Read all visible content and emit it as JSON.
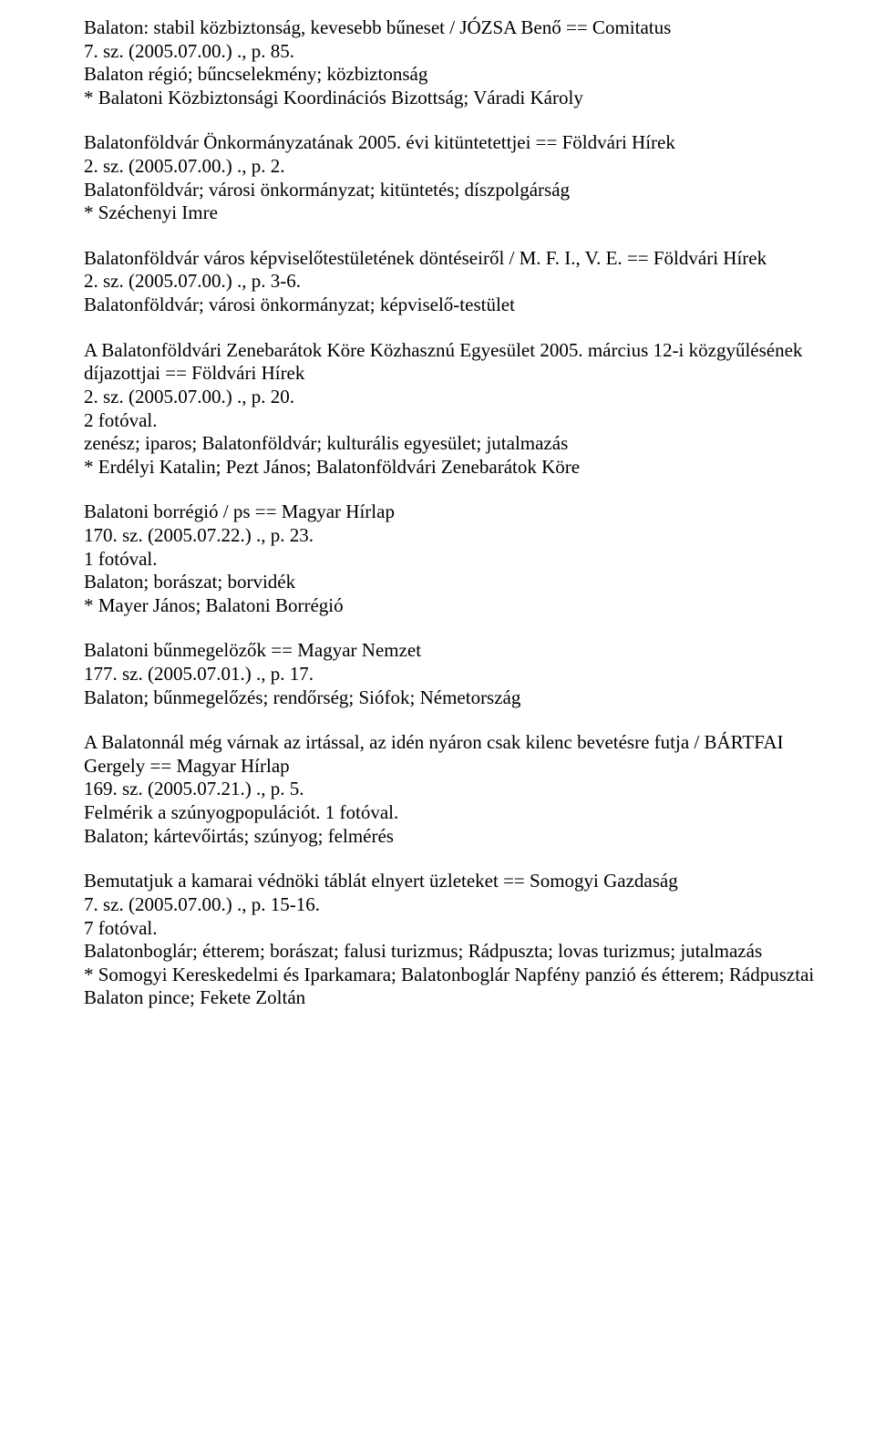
{
  "entries": [
    {
      "lines": [
        "Balaton: stabil közbiztonság, kevesebb bűneset / JÓZSA Benő == Comitatus",
        "7. sz. (2005.07.00.) ., p. 85.",
        "Balaton régió; bűncselekmény; közbiztonság",
        "* Balatoni Közbiztonsági Koordinációs Bizottság; Váradi Károly"
      ]
    },
    {
      "lines": [
        "Balatonföldvár Önkormányzatának 2005. évi kitüntetettjei == Földvári Hírek",
        "2. sz. (2005.07.00.) ., p. 2.",
        "Balatonföldvár; városi önkormányzat; kitüntetés; díszpolgárság",
        "* Széchenyi Imre"
      ]
    },
    {
      "lines": [
        "Balatonföldvár város képviselőtestületének döntéseiről / M. F. I., V. E. == Földvári Hírek",
        "2. sz. (2005.07.00.) ., p. 3-6.",
        "Balatonföldvár; városi önkormányzat; képviselő-testület"
      ]
    },
    {
      "lines": [
        "A Balatonföldvári Zenebarátok Köre Közhasznú Egyesület 2005. március 12-i közgyűlésének díjazottjai == Földvári Hírek",
        "2. sz. (2005.07.00.) ., p. 20.",
        "2 fotóval.",
        "zenész; iparos; Balatonföldvár; kulturális egyesület; jutalmazás",
        "* Erdélyi Katalin; Pezt János; Balatonföldvári Zenebarátok Köre"
      ]
    },
    {
      "lines": [
        "Balatoni borrégió / ps == Magyar Hírlap",
        "170. sz. (2005.07.22.) ., p. 23.",
        "1 fotóval.",
        "Balaton; borászat; borvidék",
        "* Mayer János; Balatoni Borrégió"
      ]
    },
    {
      "lines": [
        "Balatoni bűnmegelözők == Magyar Nemzet",
        "177. sz. (2005.07.01.) ., p. 17.",
        "Balaton; bűnmegelőzés; rendőrség; Siófok; Németország"
      ]
    },
    {
      "lines": [
        "A Balatonnál még várnak az irtással, az idén nyáron csak kilenc bevetésre futja / BÁRTFAI Gergely == Magyar Hírlap",
        "169. sz. (2005.07.21.) ., p. 5.",
        "Felmérik a szúnyogpopulációt. 1 fotóval.",
        "Balaton; kártevőirtás; szúnyog; felmérés"
      ]
    },
    {
      "lines": [
        "Bemutatjuk a kamarai védnöki táblát elnyert üzleteket == Somogyi Gazdaság",
        "7. sz. (2005.07.00.) ., p. 15-16.",
        "7 fotóval.",
        "Balatonboglár; étterem; borászat; falusi turizmus; Rádpuszta; lovas turizmus; jutalmazás",
        "* Somogyi Kereskedelmi és Iparkamara; Balatonboglár Napfény panzió és étterem; Rádpusztai Balaton pince; Fekete Zoltán"
      ]
    }
  ]
}
